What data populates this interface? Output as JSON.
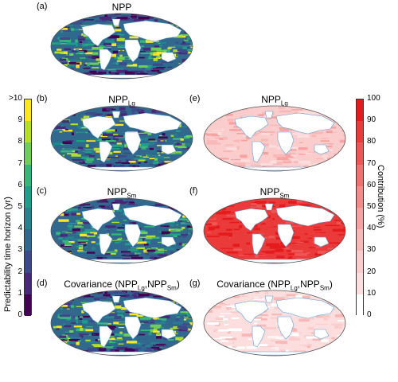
{
  "panels": [
    {
      "label": "(a)",
      "title_main": "NPP",
      "title_sub": "",
      "title_tail": "",
      "kind": "horizon"
    },
    {
      "label": "(b)",
      "title_main": "NPP",
      "title_sub": "Lg",
      "title_tail": "",
      "kind": "horizon"
    },
    {
      "label": "(c)",
      "title_main": "NPP",
      "title_sub": "Sm",
      "title_tail": "",
      "kind": "horizon"
    },
    {
      "label": "(d)",
      "title_main": "Covariance (NPP",
      "title_sub": "Lg",
      "title_tail": ",NPP",
      "title_sub2": "Sm",
      "title_end": ")",
      "kind": "horizon"
    },
    {
      "label": "(e)",
      "title_main": "NPP",
      "title_sub": "Lg",
      "title_tail": "",
      "kind": "contrib",
      "level": 0.18
    },
    {
      "label": "(f)",
      "title_main": "NPP",
      "title_sub": "Sm",
      "title_tail": "",
      "kind": "contrib",
      "level": 0.85
    },
    {
      "label": "(g)",
      "title_main": "Covariance (NPP",
      "title_sub": "Lg",
      "title_tail": ",NPP",
      "title_sub2": "Sm",
      "title_end": ")",
      "kind": "contrib",
      "level": 0.12
    }
  ],
  "left_colorbar": {
    "label": "Predictability time horizon (yr)",
    "ticks": [
      ">10",
      "9",
      "8",
      "7",
      "6",
      "5",
      "4",
      "3",
      "2",
      "1",
      "0"
    ],
    "colors": [
      "#fde725",
      "#b5de2b",
      "#6ece58",
      "#35b779",
      "#1f9e89",
      "#26828e",
      "#31688e",
      "#3e4989",
      "#482878",
      "#440154"
    ]
  },
  "right_colorbar": {
    "label": "Contribution (%)",
    "ticks": [
      "100",
      "90",
      "80",
      "70",
      "60",
      "50",
      "40",
      "30",
      "20",
      "10",
      "0"
    ],
    "colors": [
      "#e41a1c",
      "#ea3a3a",
      "#ee5555",
      "#f17070",
      "#f48a8a",
      "#f6a2a2",
      "#f8b8b8",
      "#fbcccc",
      "#fcdede",
      "#ffffff"
    ]
  }
}
